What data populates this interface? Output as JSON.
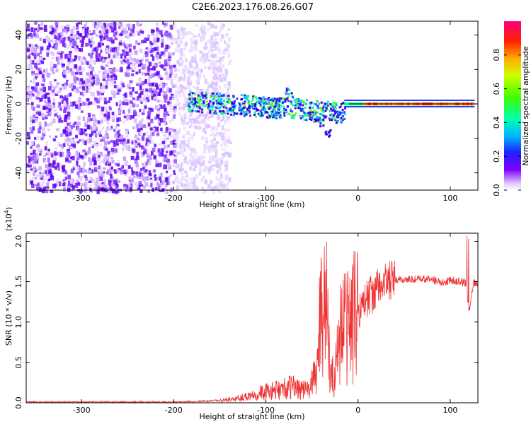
{
  "title": "C2E6.2023.176.08.26.G07",
  "colors": {
    "snr_line": "#ee3333",
    "snr_fill": "#ee3333",
    "spec_low": "#e6d6ff",
    "spec_mid": "#6a00ff",
    "spec_high": "#00cc66",
    "spec_peak": "#ff0000",
    "zero_line": "#111111"
  },
  "chart_data": [
    {
      "type": "heatmap",
      "xlabel": "Height of straight line (km)",
      "ylabel": "Frequency (Hz)",
      "xlim": [
        -360,
        130
      ],
      "ylim": [
        -50,
        48
      ],
      "xticks": [
        -300,
        -200,
        -100,
        0,
        100
      ],
      "xtick_labels": [
        "-300",
        "-200",
        "-100",
        "0",
        "100"
      ],
      "yticks": [
        -40,
        -20,
        0,
        20,
        40
      ],
      "ytick_labels": [
        "-40",
        "-20",
        "0",
        "20",
        "40"
      ],
      "colorbar": {
        "label": "Normalized spectral amplitude",
        "range": [
          0,
          1
        ],
        "ticks": [
          0.0,
          0.2,
          0.4,
          0.6,
          0.8
        ],
        "tick_labels": [
          "0.0",
          "0.2",
          "0.4",
          "0.6",
          "0.8"
        ],
        "colormap": "rainbow"
      },
      "features": {
        "noise_region_x": [
          -360,
          -160
        ],
        "signal_onset_x": -185,
        "steady_line_x": [
          0,
          130
        ],
        "steady_line_freq": 0,
        "fork_x": [
          -75,
          -30
        ],
        "fork_freq_range": [
          -20,
          12
        ]
      }
    },
    {
      "type": "line",
      "series": [
        {
          "x": [
            -360,
            -300,
            -250,
            -200,
            -170,
            -150,
            -130,
            -110,
            -90,
            -70,
            -55,
            -45,
            -40,
            -35,
            -30,
            -25,
            -20,
            -15,
            -10,
            -5,
            0,
            10,
            20,
            30,
            40,
            60,
            80,
            90,
            95,
            100,
            110,
            118,
            120,
            125,
            130
          ],
          "values": [
            0.01,
            0.01,
            0.01,
            0.01,
            0.02,
            0.03,
            0.05,
            0.12,
            0.15,
            0.2,
            0.15,
            0.35,
            1.3,
            1.3,
            0.3,
            0.35,
            0.9,
            0.95,
            1.0,
            1.05,
            1.15,
            1.3,
            1.4,
            1.5,
            1.52,
            1.53,
            1.53,
            1.5,
            1.5,
            1.52,
            1.5,
            1.48,
            1.1,
            1.48,
            1.48
          ]
        }
      ],
      "xlabel": "Height of straight line (km)",
      "ylabel": "SNR (10 * v/v)",
      "y_multiplier": "(x10",
      "y_multiplier_exp": "4",
      "y_multiplier_close": ")",
      "xlim": [
        -360,
        130
      ],
      "ylim": [
        0,
        2.1
      ],
      "xticks": [
        -300,
        -200,
        -100,
        0,
        100
      ],
      "xtick_labels": [
        "-300",
        "-200",
        "-100",
        "0",
        "100"
      ],
      "yticks": [
        0.0,
        0.5,
        1.0,
        1.5,
        2.0
      ],
      "ytick_labels": [
        "0.0",
        "0.5",
        "1.0",
        "1.5",
        "2.0"
      ]
    }
  ]
}
